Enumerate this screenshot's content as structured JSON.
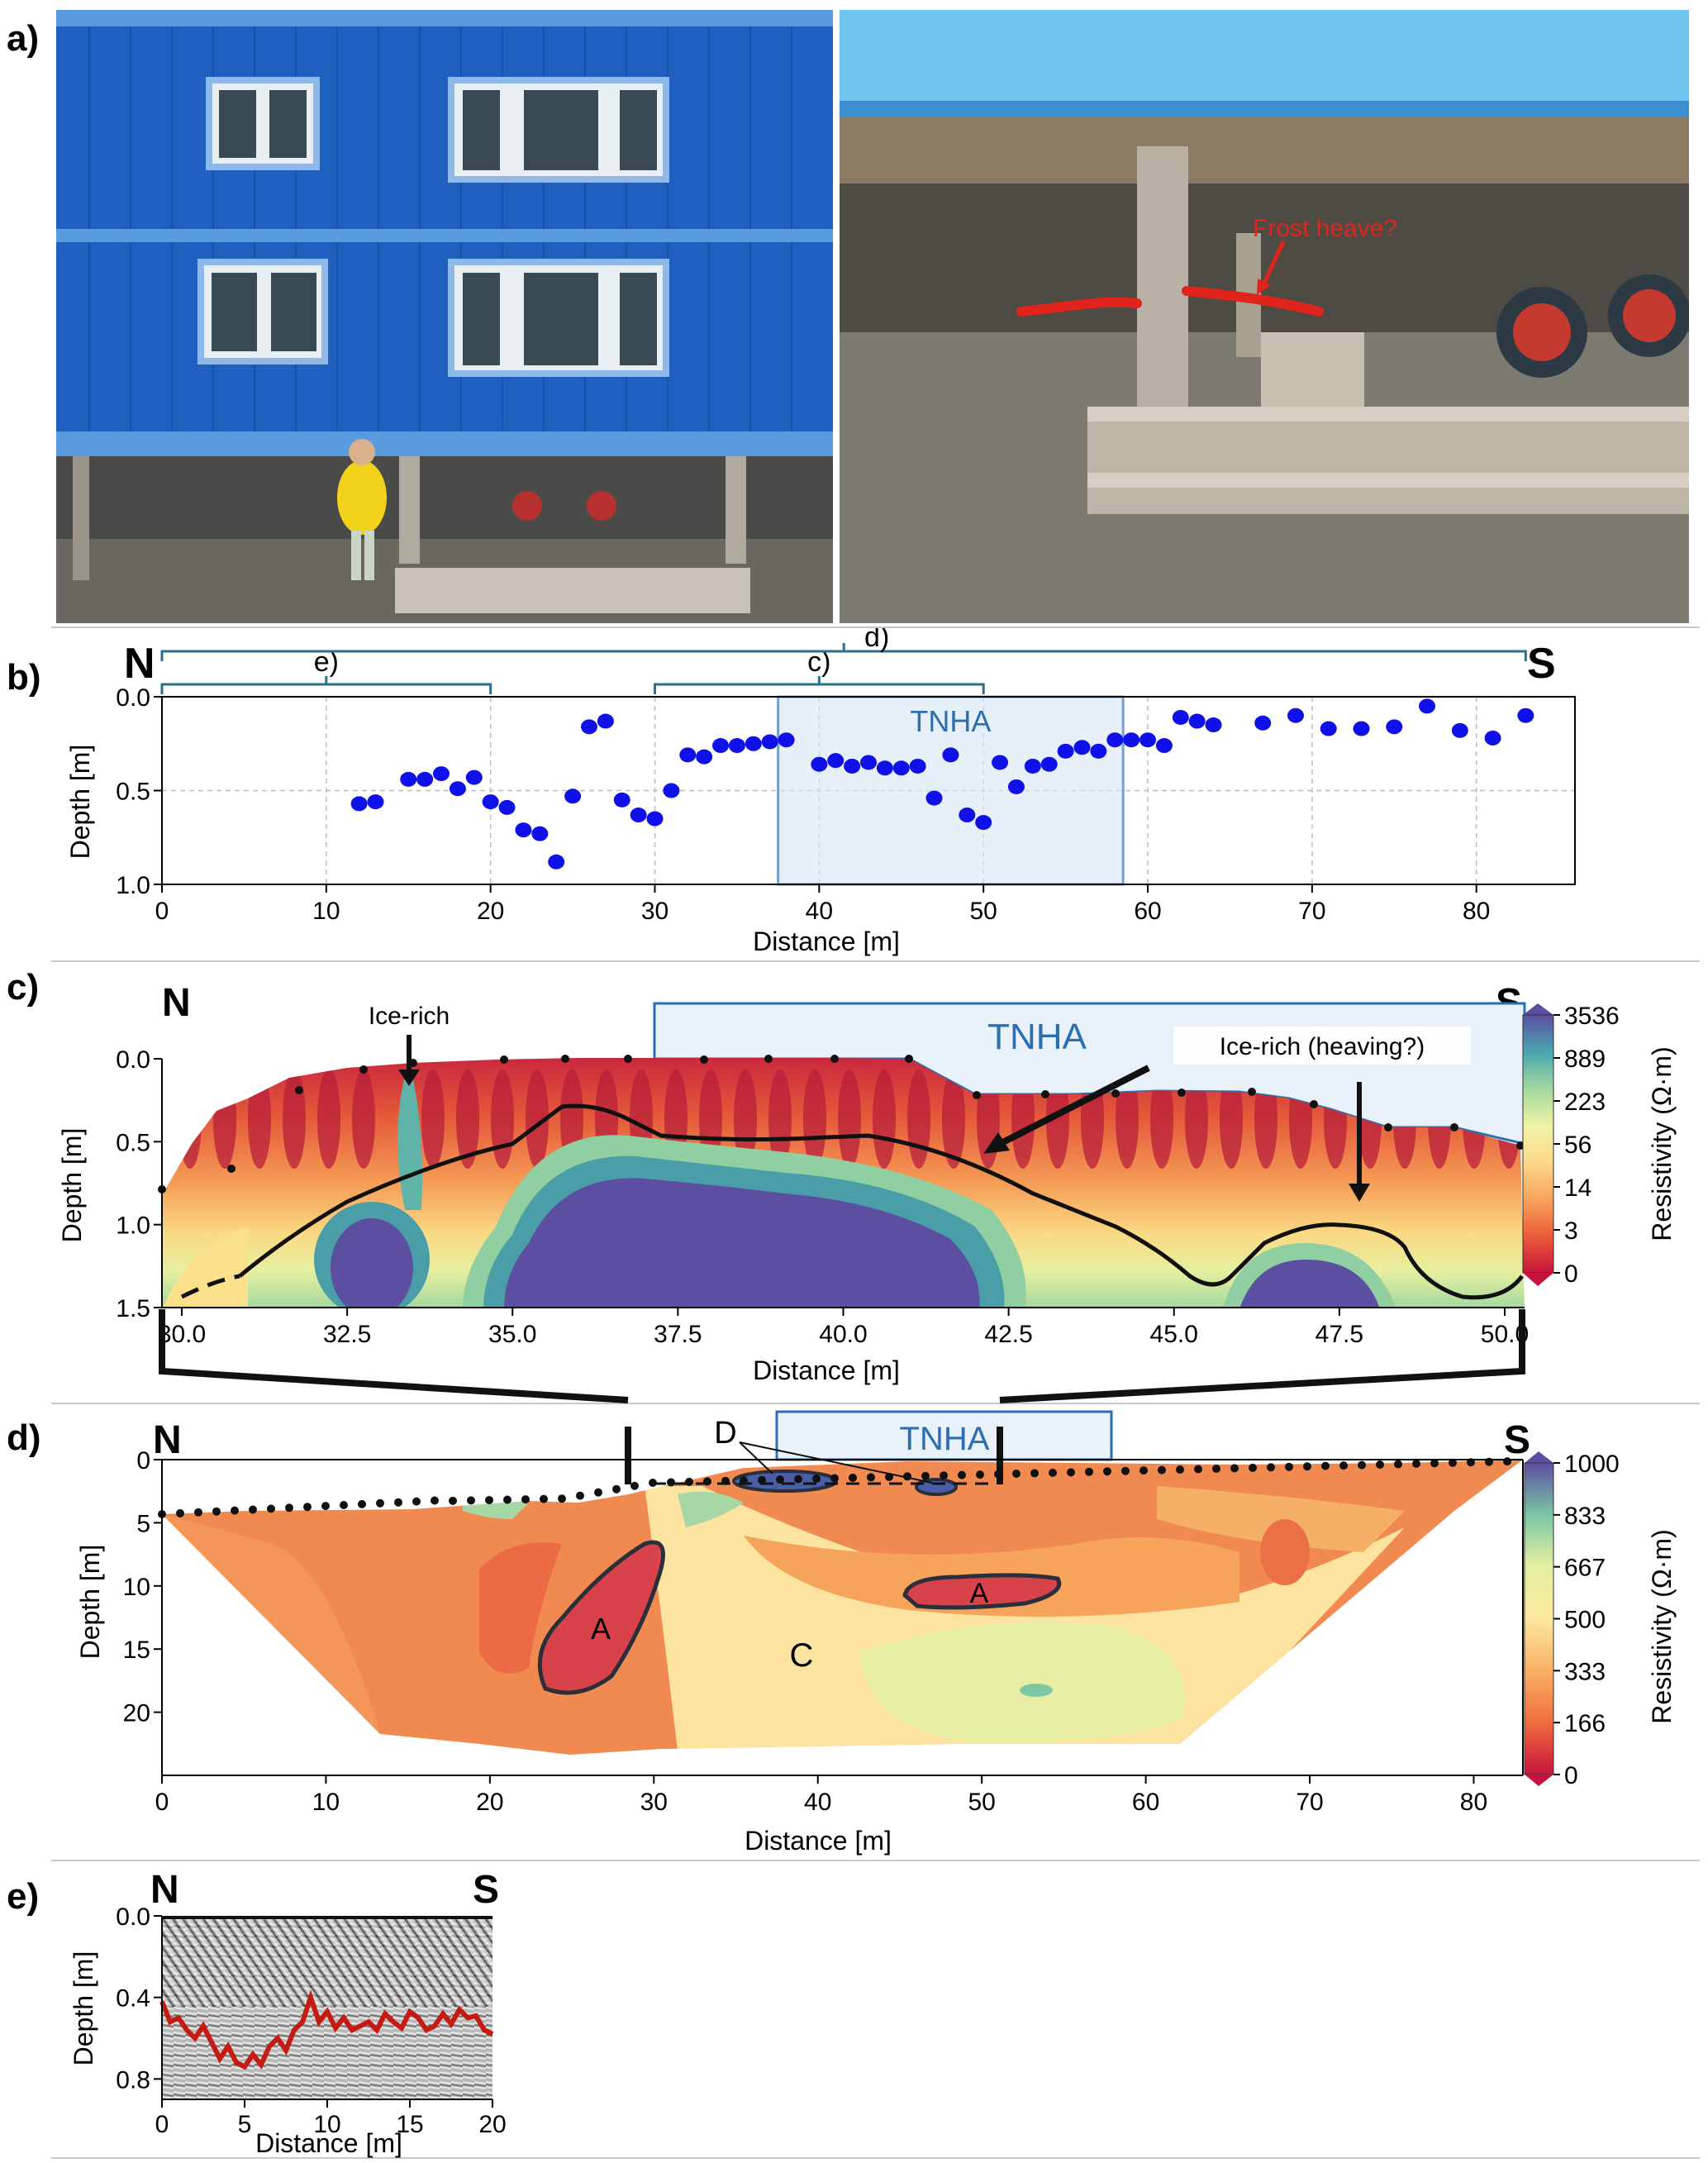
{
  "panels": {
    "a": {
      "label": "a)"
    },
    "b": {
      "label": "b)"
    },
    "c": {
      "label": "c)"
    },
    "d": {
      "label": "d)"
    },
    "e": {
      "label": "e)"
    }
  },
  "photo_annotation": {
    "text": "Frost heave?",
    "color": "#e0241b"
  },
  "panel_b": {
    "north": "N",
    "south": "S",
    "brackets": [
      "e)",
      "c)",
      "d)"
    ],
    "zone_label": "TNHA",
    "chart_data": {
      "type": "scatter",
      "xlabel": "Distance [m]",
      "ylabel": "Depth [m]",
      "xlim": [
        0,
        86
      ],
      "ylim": [
        1.0,
        0.0
      ],
      "xticks": [
        0,
        10,
        20,
        30,
        40,
        50,
        60,
        70,
        80
      ],
      "yticks": [
        "0.0",
        "0.5",
        "1.0"
      ],
      "grid": true,
      "series": [
        {
          "x": [
            12,
            13,
            15,
            16,
            17,
            18,
            19,
            20,
            21,
            22,
            23,
            24,
            25,
            26,
            27,
            28,
            29,
            30,
            31,
            32,
            33,
            34,
            35,
            36,
            37,
            38,
            40,
            41,
            42,
            43,
            44,
            45,
            46,
            47,
            48,
            49,
            50,
            51,
            52,
            53,
            54,
            55,
            56,
            57,
            58,
            59,
            60,
            61,
            62,
            63,
            64,
            67,
            69,
            71,
            73,
            75,
            77,
            79,
            81,
            83
          ],
          "y": [
            0.57,
            0.56,
            0.44,
            0.44,
            0.41,
            0.49,
            0.43,
            0.56,
            0.59,
            0.71,
            0.73,
            0.88,
            0.53,
            0.16,
            0.13,
            0.55,
            0.63,
            0.65,
            0.5,
            0.31,
            0.32,
            0.26,
            0.26,
            0.25,
            0.24,
            0.23,
            0.36,
            0.34,
            0.37,
            0.35,
            0.38,
            0.38,
            0.37,
            0.54,
            0.31,
            0.63,
            0.67,
            0.35,
            0.48,
            0.37,
            0.36,
            0.29,
            0.27,
            0.29,
            0.23,
            0.23,
            0.23,
            0.26,
            0.11,
            0.13,
            0.15,
            0.14,
            0.1,
            0.17,
            0.17,
            0.16,
            0.05,
            0.18,
            0.22,
            0.1
          ]
        }
      ],
      "shaded_region": [
        37.5,
        58.5
      ]
    }
  },
  "panel_c": {
    "north": "N",
    "south": "S",
    "zone_label": "TNHA",
    "ann_ice_rich": "Ice-rich",
    "ann_heaving": "Ice-rich (heaving?)",
    "chart_data": {
      "type": "heatmap",
      "xlabel": "Distance [m]",
      "ylabel": "Depth [m]",
      "xlim": [
        29.7,
        50.3
      ],
      "ylim": [
        1.5,
        0.0
      ],
      "xticks": [
        "30.0",
        "32.5",
        "35.0",
        "37.5",
        "40.0",
        "42.5",
        "45.0",
        "47.5",
        "50.0"
      ],
      "yticks": [
        "0.0",
        "0.5",
        "1.0",
        "1.5"
      ]
    },
    "colorbar": {
      "title": "Resistivity (Ω·m)",
      "ticks": [
        "3536",
        "889",
        "223",
        "56",
        "14",
        "3",
        "0"
      ]
    }
  },
  "panel_d": {
    "north": "N",
    "south": "S",
    "zone_label": "TNHA",
    "labels": {
      "A1": "A",
      "A2": "A",
      "C": "C",
      "D": "D"
    },
    "chart_data": {
      "type": "heatmap",
      "xlabel": "Distance [m]",
      "ylabel": "Depth [m]",
      "xlim": [
        0,
        83
      ],
      "ylim": [
        25,
        0
      ],
      "xticks": [
        "0",
        "10",
        "20",
        "30",
        "40",
        "50",
        "60",
        "70",
        "80"
      ],
      "yticks": [
        "0",
        "5",
        "10",
        "15",
        "20"
      ]
    },
    "colorbar": {
      "title": "Resistivity (Ω·m)",
      "ticks": [
        "1000",
        "833",
        "667",
        "500",
        "333",
        "166",
        "0"
      ]
    }
  },
  "panel_e": {
    "north": "N",
    "south": "S",
    "chart_data": {
      "type": "line",
      "xlabel": "Distance [m]",
      "ylabel": "Depth [m]",
      "xlim": [
        0,
        20
      ],
      "ylim": [
        0.9,
        0.0
      ],
      "xticks": [
        "0",
        "5",
        "10",
        "15",
        "20"
      ],
      "yticks": [
        "0.0",
        "0.4",
        "0.8"
      ]
    }
  }
}
